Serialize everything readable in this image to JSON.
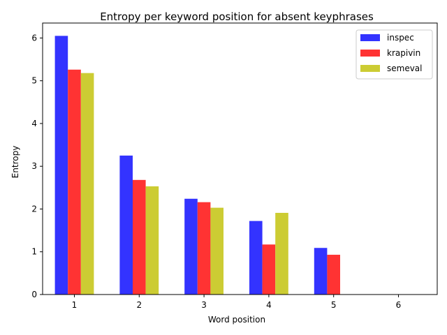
{
  "chart_data": {
    "type": "bar",
    "title": "Entropy per keyword position for absent keyphrases",
    "xlabel": "Word position",
    "ylabel": "Entropy",
    "categories": [
      "1",
      "2",
      "3",
      "4",
      "5",
      "6"
    ],
    "series": [
      {
        "name": "inspec",
        "color": "#3333ff",
        "values": [
          6.05,
          3.25,
          2.24,
          1.72,
          1.09,
          0
        ]
      },
      {
        "name": "krapivin",
        "color": "#ff3333",
        "values": [
          5.26,
          2.68,
          2.16,
          1.17,
          0.93,
          0
        ]
      },
      {
        "name": "semeval",
        "color": "#cccc33",
        "values": [
          5.18,
          2.53,
          2.03,
          1.91,
          0,
          0
        ]
      }
    ],
    "yticks": [
      "0",
      "1",
      "2",
      "3",
      "4",
      "5",
      "6"
    ],
    "ylim": [
      0,
      6.35
    ],
    "legend_position": "top-right",
    "grid": false
  }
}
